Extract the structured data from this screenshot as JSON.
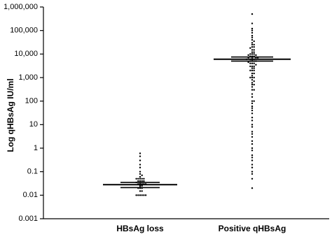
{
  "chart_data": {
    "type": "strip",
    "ylabel": "Log qHBsAg IU/ml",
    "log_scale": true,
    "color": "#000000",
    "categories": [
      "HBsAg loss",
      "Positive qHBsAg"
    ],
    "groups": [
      {
        "values": [
          0.6,
          0.45,
          0.3,
          0.2,
          0.15,
          0.1,
          0.08,
          0.07,
          0.06,
          0.05,
          0.05,
          0.05,
          0.05,
          0.05,
          0.04,
          0.04,
          0.04,
          0.04,
          0.035,
          0.03,
          0.03,
          0.03,
          0.03,
          0.03,
          0.025,
          0.025,
          0.02,
          0.02,
          0.02,
          0.015,
          0.015,
          0.01,
          0.01,
          0.01,
          0.01,
          0.01,
          0.01
        ],
        "median": 0.028,
        "error": [
          0.021,
          0.035
        ]
      },
      {
        "values": [
          500000,
          200000,
          120000,
          100000,
          80000,
          60000,
          50000,
          40000,
          35000,
          30000,
          25000,
          25000,
          20000,
          20000,
          18000,
          15000,
          15000,
          12000,
          12000,
          10000,
          10000,
          10000,
          9000,
          9000,
          8000,
          8000,
          8000,
          7000,
          7000,
          7000,
          6000,
          6000,
          6000,
          6000,
          5000,
          5000,
          5000,
          5000,
          4500,
          4000,
          4000,
          4000,
          3500,
          3000,
          3000,
          3000,
          2500,
          2500,
          2000,
          2000,
          2000,
          1500,
          1500,
          1200,
          1000,
          1000,
          1000,
          800,
          700,
          600,
          500,
          500,
          400,
          300,
          300,
          200,
          150,
          100,
          100,
          80,
          60,
          50,
          40,
          30,
          20,
          15,
          10,
          8,
          5,
          4,
          3,
          2,
          1.5,
          1,
          0.8,
          0.5,
          0.4,
          0.3,
          0.2,
          0.15,
          0.1,
          0.08,
          0.05,
          0.02
        ],
        "median": 6000,
        "error": [
          5000,
          7500
        ]
      }
    ],
    "ylim": [
      0.001,
      1000000
    ],
    "yticks": [
      0.001,
      0.01,
      0.1,
      1,
      10,
      100,
      {
        "value": 1000,
        "label": "1,000"
      },
      {
        "value": 10000,
        "label": "10,000"
      },
      {
        "value": 100000,
        "label": "100,000"
      },
      {
        "value": 1000000,
        "label": "1,000,000"
      }
    ]
  }
}
